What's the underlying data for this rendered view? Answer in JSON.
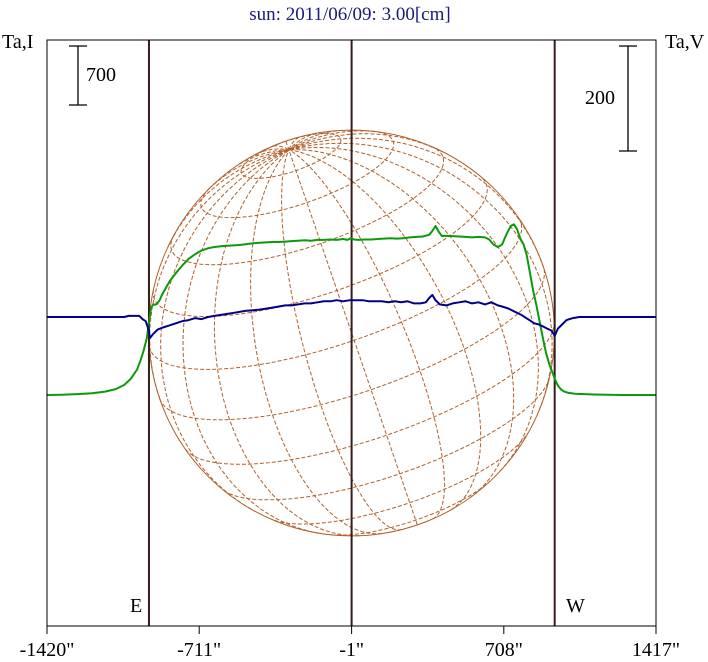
{
  "chart_data": {
    "type": "line",
    "title": "sun: 2011/06/09: 3.00[cm]",
    "left_axis_label": "Ta,I",
    "right_axis_label": "Ta,V",
    "scale_bar_left": "700",
    "scale_bar_right": "200",
    "limb_labels": {
      "east": "E",
      "west": "W"
    },
    "x_ticks": [
      {
        "value": -1420,
        "label": "-1420\""
      },
      {
        "value": -711,
        "label": "-711\""
      },
      {
        "value": -1,
        "label": "-1\""
      },
      {
        "value": 708,
        "label": "708\""
      },
      {
        "value": 1417,
        "label": "1417\""
      }
    ],
    "xlim": [
      -1420,
      1417
    ],
    "limb_x": [
      -945,
      945
    ],
    "center_x": -1,
    "colors": {
      "ta_i": "#0a9a0a",
      "ta_v": "#00008b",
      "grid": "#b0602a",
      "frame": "#000000",
      "limb_lines": "#3a1a1a"
    },
    "series": [
      {
        "key": "ta_i",
        "x": [
          -1420,
          -1350,
          -1280,
          -1210,
          -1150,
          -1100,
          -1060,
          -1030,
          -1000,
          -985,
          -970,
          -955,
          -945,
          -935,
          -925,
          -915,
          -905,
          -895,
          -885,
          -870,
          -850,
          -820,
          -790,
          -760,
          -730,
          -700,
          -670,
          -640,
          -610,
          -580,
          -550,
          -520,
          -490,
          -460,
          -430,
          -400,
          -370,
          -340,
          -310,
          -280,
          -250,
          -220,
          -190,
          -160,
          -130,
          -100,
          -70,
          -40,
          -20,
          -5,
          10,
          30,
          60,
          90,
          120,
          150,
          180,
          210,
          240,
          270,
          300,
          330,
          360,
          375,
          390,
          405,
          420,
          440,
          470,
          500,
          530,
          560,
          590,
          620,
          640,
          660,
          680,
          700,
          720,
          740,
          755,
          770,
          785,
          800,
          815,
          830,
          845,
          860,
          875,
          890,
          905,
          920,
          935,
          945,
          955,
          965,
          975,
          990,
          1010,
          1040,
          1080,
          1130,
          1190,
          1260,
          1340,
          1417
        ],
        "y": [
          -925,
          -922,
          -915,
          -905,
          -885,
          -855,
          -805,
          -735,
          -620,
          -520,
          -400,
          -250,
          -60,
          110,
          150,
          145,
          165,
          200,
          260,
          330,
          420,
          520,
          610,
          690,
          745,
          790,
          815,
          830,
          840,
          845,
          850,
          855,
          865,
          875,
          880,
          885,
          890,
          890,
          895,
          900,
          905,
          910,
          905,
          915,
          915,
          920,
          915,
          925,
          915,
          935,
          920,
          915,
          920,
          920,
          925,
          930,
          935,
          930,
          935,
          945,
          950,
          955,
          975,
          1020,
          1080,
          1010,
          960,
          965,
          960,
          955,
          950,
          945,
          950,
          945,
          920,
          860,
          830,
          860,
          980,
          1080,
          1100,
          1040,
          930,
          860,
          730,
          520,
          310,
          140,
          -60,
          -250,
          -430,
          -560,
          -660,
          -730,
          -790,
          -830,
          -860,
          -885,
          -900,
          -910,
          -915,
          -920,
          -922,
          -925,
          -925,
          -925
        ]
      },
      {
        "key": "ta_v",
        "x": [
          -1420,
          -1200,
          -1100,
          -1060,
          -1040,
          -1010,
          -990,
          -975,
          -960,
          -950,
          -940,
          -925,
          -905,
          -880,
          -850,
          -820,
          -790,
          -760,
          -730,
          -700,
          -670,
          -640,
          -610,
          -580,
          -550,
          -520,
          -490,
          -460,
          -430,
          -400,
          -370,
          -340,
          -310,
          -280,
          -250,
          -220,
          -190,
          -160,
          -130,
          -100,
          -70,
          -40,
          -10,
          20,
          50,
          80,
          110,
          140,
          170,
          200,
          230,
          260,
          290,
          320,
          345,
          360,
          375,
          390,
          410,
          440,
          470,
          500,
          530,
          560,
          590,
          620,
          650,
          680,
          700,
          730,
          760,
          790,
          820,
          850,
          870,
          890,
          910,
          930,
          945,
          960,
          980,
          1000,
          1030,
          1060,
          1100,
          1200,
          1417
        ],
        "y": [
          0,
          0,
          0,
          0,
          2,
          2,
          2,
          -4,
          -8,
          -20,
          -40,
          -32,
          -24,
          -20,
          -16,
          -12,
          -8,
          -6,
          -2,
          -4,
          0,
          2,
          4,
          6,
          8,
          10,
          12,
          13,
          14,
          16,
          18,
          20,
          22,
          22,
          24,
          26,
          26,
          28,
          30,
          30,
          32,
          30,
          32,
          32,
          32,
          30,
          30,
          30,
          28,
          30,
          28,
          30,
          26,
          26,
          28,
          36,
          42,
          32,
          24,
          22,
          26,
          28,
          30,
          26,
          28,
          24,
          28,
          22,
          20,
          16,
          10,
          4,
          -4,
          -12,
          -14,
          -18,
          -22,
          -26,
          -36,
          -22,
          -14,
          -6,
          -2,
          0,
          0,
          0,
          0
        ]
      }
    ]
  }
}
